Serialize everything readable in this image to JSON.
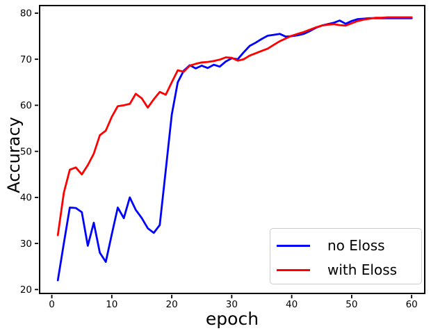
{
  "chart_data": {
    "type": "line",
    "title": "",
    "xlabel": "epoch",
    "ylabel": "Accuracy",
    "xlim": [
      -2.15,
      62.3
    ],
    "ylim": [
      19.0,
      81.8
    ],
    "x_ticks": [
      0,
      10,
      20,
      30,
      40,
      50,
      60
    ],
    "y_ticks": [
      20,
      30,
      40,
      50,
      60,
      70,
      80
    ],
    "grid": false,
    "legend_position": "lower right",
    "axis_color": "#000000",
    "x": [
      1,
      2,
      3,
      4,
      5,
      6,
      7,
      8,
      9,
      10,
      11,
      12,
      13,
      14,
      15,
      16,
      17,
      18,
      19,
      20,
      21,
      22,
      23,
      24,
      25,
      26,
      27,
      28,
      29,
      30,
      31,
      32,
      33,
      34,
      35,
      36,
      37,
      38,
      39,
      40,
      41,
      42,
      43,
      44,
      45,
      46,
      47,
      48,
      49,
      50,
      51,
      52,
      53,
      54,
      55,
      56,
      57,
      58,
      59,
      60
    ],
    "series": [
      {
        "name": "no Eloss",
        "color": "#0000ff",
        "values": [
          22,
          30,
          37.8,
          37.7,
          36.8,
          29.5,
          34.5,
          28,
          26,
          32,
          37.8,
          35.5,
          40,
          37.3,
          35.5,
          33.3,
          32.3,
          34,
          46,
          58,
          65,
          67.5,
          68.7,
          68,
          68.6,
          68.1,
          68.8,
          68.4,
          69.5,
          70.2,
          70,
          71.5,
          72.9,
          73.6,
          74.4,
          75.1,
          75.3,
          75.5,
          74.9,
          75,
          75.2,
          75.5,
          76.1,
          76.8,
          77.3,
          77.6,
          77.9,
          78.4,
          77.7,
          78.3,
          78.7,
          78.8,
          78.9,
          78.9,
          78.9,
          78.9,
          78.9,
          78.9,
          78.9,
          78.9
        ]
      },
      {
        "name": "with Eloss",
        "color": "#ff0000",
        "values": [
          31.8,
          41,
          46,
          46.5,
          45,
          47,
          49.5,
          53.5,
          54.5,
          57.5,
          59.8,
          60,
          60.3,
          62.5,
          61.5,
          59.5,
          61.3,
          62.9,
          62.3,
          65,
          67.6,
          67.3,
          68.6,
          69,
          69.3,
          69.4,
          69.6,
          69.9,
          70.4,
          70.3,
          69.7,
          70,
          70.8,
          71.3,
          71.8,
          72.3,
          73.1,
          73.9,
          74.5,
          75.1,
          75.5,
          75.9,
          76.4,
          76.9,
          77.3,
          77.5,
          77.6,
          77.4,
          77.3,
          77.8,
          78.3,
          78.6,
          78.8,
          79,
          79,
          79.1,
          79.1,
          79.1,
          79.1,
          79.1
        ]
      }
    ]
  }
}
